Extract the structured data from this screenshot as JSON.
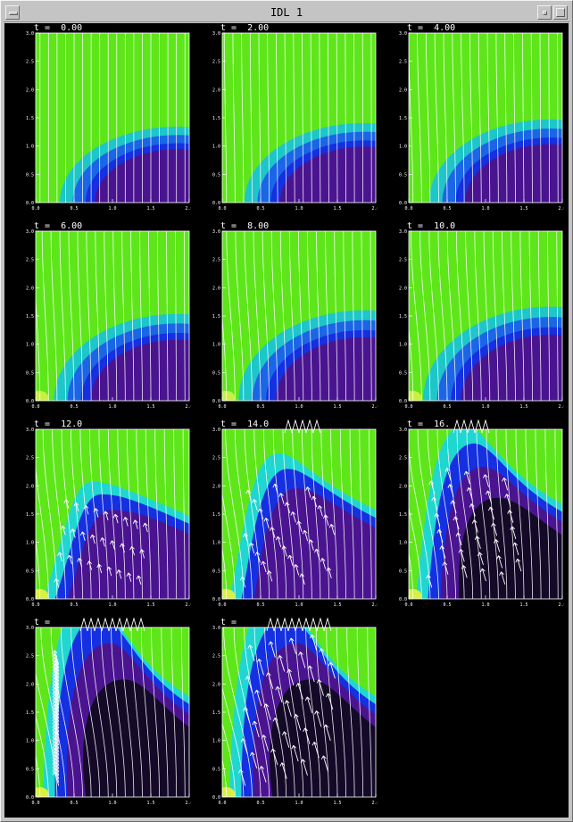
{
  "window": {
    "title": "IDL 1"
  },
  "panels": [
    {
      "label": "t =  0.00",
      "stage": 0
    },
    {
      "label": "t =  2.00",
      "stage": 1
    },
    {
      "label": "t =  4.00",
      "stage": 2
    },
    {
      "label": "t =  6.00",
      "stage": 3
    },
    {
      "label": "t =  8.00",
      "stage": 4
    },
    {
      "label": "t =  10.0",
      "stage": 5
    },
    {
      "label": "t =  12.0",
      "stage": 6
    },
    {
      "label": "t =  14.0",
      "stage": 7
    },
    {
      "label": "t =  16.",
      "stage": 8
    },
    {
      "label": "t = ",
      "stage": 9
    },
    {
      "label": "t = ",
      "stage": 10
    }
  ],
  "axes": {
    "y_ticks": [
      "0.0",
      "0.5",
      "1.0",
      "1.5",
      "2.0",
      "2.5",
      "3.0"
    ],
    "x_ticks": [
      "0.0",
      "0.5",
      "1.0",
      "1.5",
      "2.0"
    ],
    "xlim": [
      0,
      2
    ],
    "ylim": [
      0,
      3
    ]
  },
  "colors": {
    "background": "#000000",
    "field_green": "#5ee61a",
    "field_cyan": "#20d6d0",
    "field_blue": "#1430e0",
    "field_purple": "#4a1490",
    "vectors": "#ffffff"
  }
}
